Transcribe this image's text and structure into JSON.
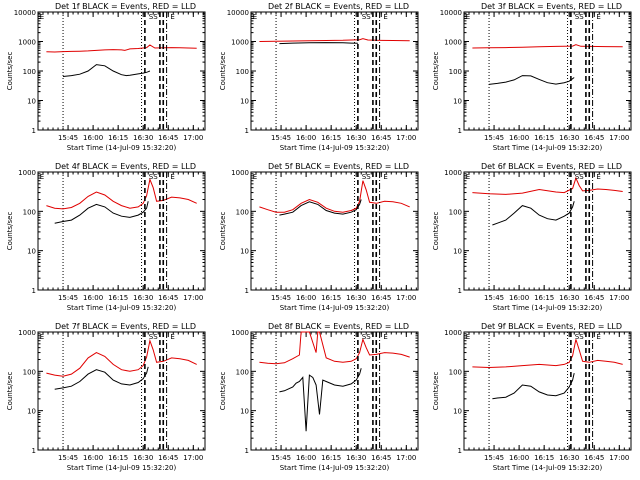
{
  "colors": {
    "events": "#000000",
    "lld": "#e00000",
    "axes": "#000000"
  },
  "layout": {
    "rows": 3,
    "cols": 3
  },
  "chart_data": [
    {
      "type": "line",
      "title": "Det 1f BLACK = Events, RED = LLD",
      "xlabel": "Start Time (14-Jul-09 15:32:20)",
      "ylabel": "Counts/sec",
      "ylim": [
        1,
        10000
      ],
      "yscale": "log",
      "xticks": [
        "15:45",
        "16:00",
        "16:15",
        "16:30",
        "16:45",
        "17:00"
      ],
      "yticks": [
        "1",
        "10",
        "100",
        "1000",
        "10000"
      ],
      "markers": [
        {
          "label": "SS"
        },
        {
          "label": "E"
        }
      ],
      "series": [
        {
          "name": "LLD",
          "color": "red",
          "x": [
            0,
            5,
            10,
            15,
            20,
            25,
            30,
            35,
            40,
            45,
            47,
            50,
            55,
            60,
            62,
            65,
            70,
            75,
            80,
            85,
            90
          ],
          "values": [
            450,
            440,
            455,
            460,
            470,
            480,
            500,
            520,
            530,
            520,
            500,
            560,
            580,
            620,
            760,
            600,
            610,
            620,
            610,
            600,
            590
          ]
        },
        {
          "name": "Events",
          "color": "black",
          "x": [
            10,
            15,
            20,
            25,
            30,
            35,
            40,
            45,
            48,
            50,
            55,
            58,
            60,
            61,
            62
          ],
          "values": [
            65,
            70,
            78,
            100,
            165,
            150,
            100,
            75,
            70,
            72,
            80,
            85,
            90,
            95,
            100
          ]
        }
      ]
    },
    {
      "type": "line",
      "title": "Det 2f BLACK = Events, RED = LLD",
      "xlabel": "Start Time (14-Jul-09 15:32:20)",
      "ylabel": "Counts/sec",
      "ylim": [
        1,
        10000
      ],
      "yscale": "log",
      "xticks": [
        "15:45",
        "16:00",
        "16:15",
        "16:30",
        "16:45",
        "17:00"
      ],
      "yticks": [
        "1",
        "10",
        "100",
        "1000",
        "10000"
      ],
      "markers": [
        {
          "label": "SS"
        },
        {
          "label": "E"
        }
      ],
      "series": [
        {
          "name": "LLD",
          "color": "red",
          "x": [
            0,
            10,
            20,
            30,
            40,
            50,
            60,
            62,
            65,
            70,
            80,
            90
          ],
          "values": [
            1000,
            1020,
            1040,
            1060,
            1080,
            1100,
            1150,
            1250,
            1120,
            1100,
            1080,
            1060
          ]
        },
        {
          "name": "Events",
          "color": "black",
          "x": [
            12,
            20,
            30,
            40,
            50,
            55,
            59
          ],
          "values": [
            850,
            880,
            900,
            920,
            900,
            880,
            870
          ]
        }
      ]
    },
    {
      "type": "line",
      "title": "Det 3f BLACK = Events, RED = LLD",
      "xlabel": "Start Time (14-Jul-09 15:32:20)",
      "ylabel": "Counts/sec",
      "ylim": [
        1,
        10000
      ],
      "yscale": "log",
      "xticks": [
        "15:45",
        "16:00",
        "16:15",
        "16:30",
        "16:45",
        "17:00"
      ],
      "yticks": [
        "1",
        "10",
        "100",
        "1000",
        "10000"
      ],
      "markers": [
        {
          "label": "SS"
        },
        {
          "label": "E"
        }
      ],
      "series": [
        {
          "name": "LLD",
          "color": "red",
          "x": [
            0,
            10,
            20,
            30,
            40,
            50,
            60,
            62,
            65,
            70,
            80,
            90
          ],
          "values": [
            600,
            610,
            620,
            640,
            660,
            680,
            700,
            780,
            690,
            680,
            670,
            660
          ]
        },
        {
          "name": "Events",
          "color": "black",
          "x": [
            10,
            15,
            20,
            25,
            30,
            35,
            40,
            45,
            50,
            55,
            58,
            60,
            61
          ],
          "values": [
            35,
            38,
            42,
            50,
            70,
            68,
            52,
            40,
            36,
            40,
            45,
            55,
            60
          ]
        }
      ]
    },
    {
      "type": "line",
      "title": "Det 4f BLACK = Events, RED = LLD",
      "xlabel": "Start Time (14-Jul-09 15:32:20)",
      "ylabel": "Counts/sec",
      "ylim": [
        1,
        1000
      ],
      "yscale": "log",
      "xticks": [
        "15:45",
        "16:00",
        "16:15",
        "16:30",
        "16:45",
        "17:00"
      ],
      "yticks": [
        "1",
        "10",
        "100",
        "1000"
      ],
      "markers": [
        {
          "label": "SS"
        },
        {
          "label": "E"
        }
      ],
      "series": [
        {
          "name": "LLD",
          "color": "red",
          "x": [
            0,
            5,
            10,
            15,
            20,
            25,
            30,
            35,
            40,
            45,
            50,
            55,
            58,
            60,
            62,
            64,
            66,
            70,
            75,
            80,
            85,
            90
          ],
          "values": [
            140,
            120,
            115,
            125,
            160,
            240,
            310,
            260,
            180,
            140,
            120,
            130,
            160,
            250,
            650,
            400,
            180,
            190,
            230,
            220,
            200,
            160
          ]
        },
        {
          "name": "Events",
          "color": "black",
          "x": [
            5,
            10,
            15,
            20,
            25,
            30,
            35,
            40,
            45,
            50,
            55,
            58,
            60,
            61
          ],
          "values": [
            50,
            55,
            60,
            80,
            120,
            150,
            130,
            90,
            75,
            70,
            80,
            95,
            120,
            180
          ]
        }
      ]
    },
    {
      "type": "line",
      "title": "Det 5f BLACK = Events, RED = LLD",
      "xlabel": "Start Time (14-Jul-09 15:32:20)",
      "ylabel": "Counts/sec",
      "ylim": [
        1,
        1000
      ],
      "yscale": "log",
      "xticks": [
        "15:45",
        "16:00",
        "16:15",
        "16:30",
        "16:45",
        "17:00"
      ],
      "yticks": [
        "1",
        "10",
        "100",
        "1000"
      ],
      "markers": [
        {
          "label": "SS"
        },
        {
          "label": "E"
        }
      ],
      "series": [
        {
          "name": "LLD",
          "color": "red",
          "x": [
            0,
            5,
            10,
            15,
            20,
            25,
            30,
            35,
            40,
            45,
            50,
            55,
            58,
            60,
            62,
            64,
            66,
            70,
            75,
            80,
            85,
            90
          ],
          "values": [
            130,
            110,
            95,
            95,
            110,
            160,
            200,
            170,
            120,
            100,
            95,
            105,
            120,
            180,
            600,
            350,
            170,
            160,
            180,
            175,
            160,
            130
          ]
        },
        {
          "name": "Events",
          "color": "black",
          "x": [
            12,
            15,
            20,
            25,
            30,
            35,
            40,
            45,
            50,
            55,
            58,
            60,
            61
          ],
          "values": [
            80,
            85,
            95,
            140,
            175,
            150,
            105,
            90,
            85,
            95,
            110,
            150,
            200
          ]
        }
      ]
    },
    {
      "type": "line",
      "title": "Det 6f BLACK = Events, RED = LLD",
      "xlabel": "Start Time (14-Jul-09 15:32:20)",
      "ylabel": "Counts/sec",
      "ylim": [
        1,
        1000
      ],
      "yscale": "log",
      "xticks": [
        "15:45",
        "16:00",
        "16:15",
        "16:30",
        "16:45",
        "17:00"
      ],
      "yticks": [
        "1",
        "10",
        "100",
        "1000"
      ],
      "markers": [
        {
          "label": "SS"
        },
        {
          "label": "E"
        }
      ],
      "series": [
        {
          "name": "LLD",
          "color": "red",
          "x": [
            0,
            10,
            20,
            30,
            40,
            50,
            55,
            60,
            62,
            64,
            66,
            70,
            75,
            80,
            85,
            90
          ],
          "values": [
            300,
            280,
            270,
            290,
            360,
            310,
            300,
            380,
            700,
            450,
            330,
            340,
            370,
            360,
            340,
            320
          ]
        },
        {
          "name": "Events",
          "color": "black",
          "x": [
            12,
            15,
            20,
            25,
            30,
            35,
            40,
            45,
            50,
            55,
            58,
            60,
            61
          ],
          "values": [
            45,
            50,
            60,
            90,
            140,
            120,
            80,
            65,
            60,
            75,
            90,
            130,
            180
          ]
        }
      ]
    },
    {
      "type": "line",
      "title": "Det 7f BLACK = Events, RED = LLD",
      "xlabel": "Start Time (14-Jul-09 15:32:20)",
      "ylabel": "Counts/sec",
      "ylim": [
        1,
        1000
      ],
      "yscale": "log",
      "xticks": [
        "15:45",
        "16:00",
        "16:15",
        "16:30",
        "16:45",
        "17:00"
      ],
      "yticks": [
        "1",
        "10",
        "100",
        "1000"
      ],
      "markers": [
        {
          "label": "SS"
        },
        {
          "label": "E"
        }
      ],
      "series": [
        {
          "name": "LLD",
          "color": "red",
          "x": [
            0,
            5,
            10,
            15,
            20,
            25,
            30,
            35,
            40,
            45,
            50,
            55,
            58,
            60,
            62,
            64,
            66,
            70,
            75,
            80,
            85,
            90
          ],
          "values": [
            90,
            80,
            75,
            85,
            120,
            220,
            300,
            240,
            150,
            110,
            100,
            110,
            140,
            230,
            600,
            350,
            170,
            180,
            220,
            210,
            190,
            150
          ]
        },
        {
          "name": "Events",
          "color": "black",
          "x": [
            5,
            10,
            15,
            20,
            25,
            30,
            35,
            40,
            45,
            50,
            55,
            58,
            60,
            61
          ],
          "values": [
            35,
            38,
            42,
            55,
            85,
            110,
            95,
            60,
            48,
            45,
            52,
            65,
            90,
            130
          ]
        }
      ]
    },
    {
      "type": "line",
      "title": "Det 8f BLACK = Events, RED = LLD",
      "xlabel": "Start Time (14-Jul-09 15:32:20)",
      "ylabel": "Counts/sec",
      "ylim": [
        1,
        1000
      ],
      "yscale": "log",
      "xticks": [
        "15:45",
        "16:00",
        "16:15",
        "16:30",
        "16:45",
        "17:00"
      ],
      "yticks": [
        "1",
        "10",
        "100",
        "1000"
      ],
      "markers": [
        {
          "label": "SS"
        },
        {
          "label": "E"
        }
      ],
      "series": [
        {
          "name": "LLD",
          "color": "red",
          "x": [
            0,
            5,
            10,
            15,
            20,
            24,
            25,
            26,
            28,
            30,
            34,
            35,
            36,
            40,
            45,
            50,
            55,
            58,
            60,
            62,
            64,
            66,
            70,
            75,
            80,
            85,
            90
          ],
          "values": [
            170,
            160,
            155,
            165,
            210,
            260,
            1000,
            1000,
            1000,
            1000,
            300,
            1000,
            1000,
            220,
            180,
            170,
            180,
            210,
            300,
            650,
            400,
            260,
            270,
            300,
            290,
            270,
            230
          ]
        },
        {
          "name": "Events",
          "color": "black",
          "x": [
            12,
            15,
            20,
            22,
            24,
            26,
            28,
            30,
            32,
            34,
            36,
            38,
            40,
            45,
            50,
            55,
            58,
            60,
            61
          ],
          "values": [
            30,
            32,
            40,
            50,
            55,
            70,
            3,
            80,
            70,
            45,
            8,
            60,
            55,
            45,
            42,
            48,
            60,
            85,
            120
          ]
        }
      ]
    },
    {
      "type": "line",
      "title": "Det 9f BLACK = Events, RED = LLD",
      "xlabel": "Start Time (14-Jul-09 15:32:20)",
      "ylabel": "Counts/sec",
      "ylim": [
        1,
        1000
      ],
      "yscale": "log",
      "xticks": [
        "15:45",
        "16:00",
        "16:15",
        "16:30",
        "16:45",
        "17:00"
      ],
      "yticks": [
        "1",
        "10",
        "100",
        "1000"
      ],
      "markers": [
        {
          "label": "SS"
        },
        {
          "label": "E"
        }
      ],
      "series": [
        {
          "name": "LLD",
          "color": "red",
          "x": [
            0,
            10,
            20,
            30,
            40,
            50,
            55,
            58,
            60,
            62,
            64,
            66,
            70,
            75,
            80,
            85,
            90
          ],
          "values": [
            130,
            125,
            130,
            140,
            150,
            140,
            150,
            170,
            250,
            650,
            350,
            180,
            170,
            190,
            180,
            170,
            150
          ]
        },
        {
          "name": "Events",
          "color": "black",
          "x": [
            12,
            15,
            20,
            25,
            30,
            35,
            40,
            45,
            50,
            55,
            58,
            60,
            61
          ],
          "values": [
            20,
            21,
            22,
            28,
            45,
            42,
            30,
            25,
            24,
            28,
            40,
            60,
            90
          ]
        }
      ]
    }
  ]
}
